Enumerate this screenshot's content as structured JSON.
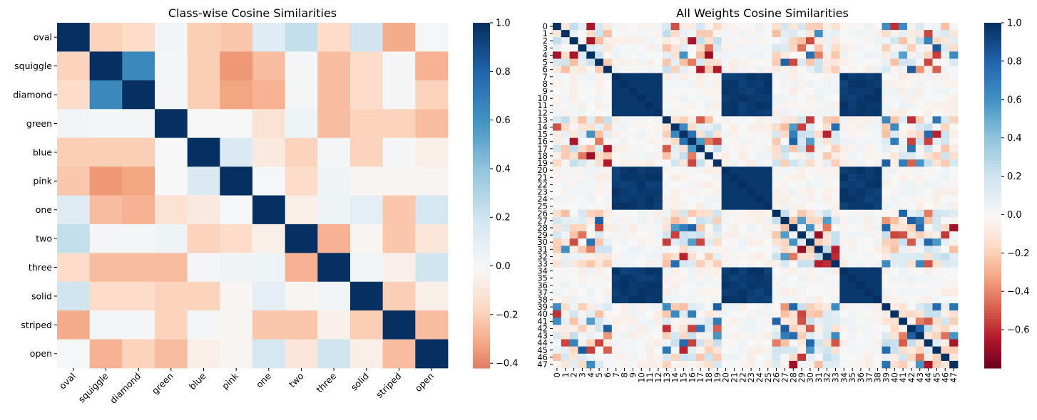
{
  "chart_data": [
    {
      "type": "heatmap",
      "title": "Class-wise Cosine Similarities",
      "row_labels": [
        "oval",
        "squiggle",
        "diamond",
        "green",
        "blue",
        "pink",
        "one",
        "two",
        "three",
        "solid",
        "striped",
        "open"
      ],
      "col_labels": [
        "oval",
        "squiggle",
        "diamond",
        "green",
        "blue",
        "pink",
        "one",
        "two",
        "three",
        "solid",
        "striped",
        "open"
      ],
      "values": [
        [
          1.0,
          -0.18,
          -0.15,
          0.03,
          -0.2,
          -0.22,
          0.12,
          0.24,
          -0.15,
          0.2,
          -0.3,
          0.01
        ],
        [
          -0.18,
          1.0,
          0.65,
          0.02,
          -0.2,
          -0.35,
          -0.25,
          0.02,
          -0.25,
          -0.15,
          0.02,
          -0.28
        ],
        [
          -0.15,
          0.65,
          1.0,
          0.02,
          -0.2,
          -0.32,
          -0.28,
          0.02,
          -0.25,
          -0.15,
          0.02,
          -0.18
        ],
        [
          0.03,
          0.02,
          0.02,
          1.0,
          0.0,
          0.0,
          -0.12,
          0.05,
          -0.25,
          -0.18,
          -0.18,
          -0.25
        ],
        [
          -0.2,
          -0.2,
          -0.2,
          0.0,
          1.0,
          0.15,
          -0.08,
          -0.18,
          0.02,
          -0.18,
          0.02,
          -0.05
        ],
        [
          -0.22,
          -0.35,
          -0.32,
          0.0,
          0.15,
          1.0,
          0.01,
          -0.15,
          0.04,
          -0.02,
          -0.02,
          -0.02
        ],
        [
          0.12,
          -0.25,
          -0.28,
          -0.12,
          -0.08,
          0.01,
          1.0,
          -0.05,
          0.05,
          0.1,
          -0.22,
          0.18
        ],
        [
          0.24,
          0.02,
          0.02,
          0.05,
          -0.18,
          -0.15,
          -0.05,
          1.0,
          -0.28,
          -0.02,
          -0.22,
          -0.1
        ],
        [
          -0.15,
          -0.25,
          -0.25,
          -0.25,
          0.02,
          0.04,
          0.05,
          -0.28,
          1.0,
          0.03,
          -0.04,
          0.2
        ],
        [
          0.2,
          -0.15,
          -0.15,
          -0.18,
          -0.18,
          -0.02,
          0.1,
          -0.02,
          0.03,
          1.0,
          -0.2,
          -0.05
        ],
        [
          -0.3,
          0.02,
          0.02,
          -0.18,
          0.02,
          -0.02,
          -0.22,
          -0.22,
          -0.04,
          -0.2,
          1.0,
          -0.25
        ],
        [
          0.01,
          -0.28,
          -0.18,
          -0.25,
          -0.05,
          -0.02,
          0.18,
          -0.1,
          0.2,
          -0.05,
          -0.25,
          1.0
        ]
      ],
      "colorbar": {
        "vmin": -0.42,
        "vmax": 1.0,
        "ticks": [
          1.0,
          0.8,
          0.6,
          0.4,
          0.2,
          0.0,
          -0.2,
          -0.4
        ],
        "tick_labels": [
          "1.0",
          "0.8",
          "0.6",
          "0.4",
          "0.2",
          "0.0",
          "−0.2",
          "−0.4"
        ]
      },
      "colormap": "RdBu"
    },
    {
      "type": "heatmap",
      "title": "All Weights Cosine Similarities",
      "size": 48,
      "row_labels": [
        "0",
        "1",
        "2",
        "3",
        "4",
        "5",
        "6",
        "7",
        "8",
        "9",
        "10",
        "11",
        "12",
        "13",
        "14",
        "15",
        "16",
        "17",
        "18",
        "19",
        "20",
        "21",
        "22",
        "23",
        "24",
        "25",
        "26",
        "27",
        "28",
        "29",
        "30",
        "31",
        "32",
        "33",
        "34",
        "35",
        "36",
        "37",
        "38",
        "39",
        "40",
        "41",
        "42",
        "43",
        "44",
        "45",
        "46",
        "47"
      ],
      "col_labels": [
        "0",
        "1",
        "2",
        "3",
        "4",
        "5",
        "6",
        "7",
        "8",
        "9",
        "10",
        "11",
        "12",
        "13",
        "14",
        "15",
        "16",
        "17",
        "18",
        "19",
        "20",
        "21",
        "22",
        "23",
        "24",
        "25",
        "26",
        "27",
        "28",
        "29",
        "30",
        "31",
        "32",
        "33",
        "34",
        "35",
        "36",
        "37",
        "38",
        "39",
        "40",
        "41",
        "42",
        "43",
        "44",
        "45",
        "46",
        "47"
      ],
      "block_groups": [
        [
          7,
          8,
          9,
          10,
          11,
          12
        ],
        [
          20,
          21,
          22,
          23,
          24,
          25
        ],
        [
          34,
          35,
          36,
          37,
          38
        ]
      ],
      "block_similarity": 0.97,
      "colorbar": {
        "vmin": -0.8,
        "vmax": 1.0,
        "ticks": [
          1.0,
          0.8,
          0.6,
          0.4,
          0.2,
          0.0,
          -0.2,
          -0.4,
          -0.6
        ],
        "tick_labels": [
          "1.0",
          "0.8",
          "0.6",
          "0.4",
          "0.2",
          "0.0",
          "−0.2",
          "−0.4",
          "−0.6"
        ]
      },
      "colormap": "RdBu"
    }
  ]
}
